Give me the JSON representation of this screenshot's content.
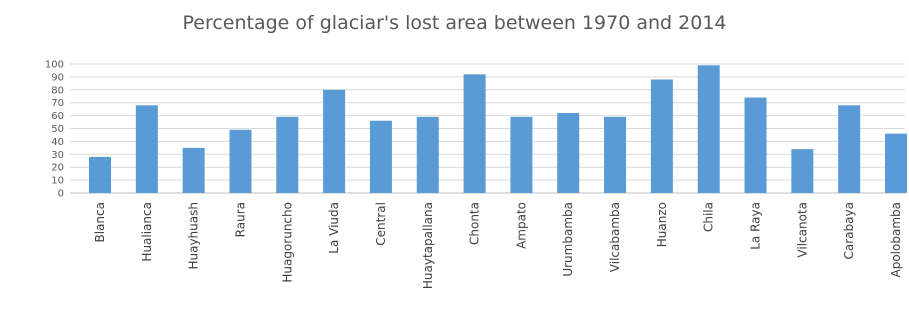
{
  "chart_data": {
    "type": "bar",
    "title": "Percentage of glaciar's lost area between 1970 and 2014",
    "xlabel": "",
    "ylabel": "",
    "ylim": [
      0,
      100
    ],
    "yticks": [
      0,
      10,
      20,
      30,
      40,
      50,
      60,
      70,
      80,
      90,
      100
    ],
    "grid": true,
    "legend": "none",
    "bar_color": "#5b9bd5",
    "categories": [
      "Blanca",
      "Hualianca",
      "Huayhuash",
      "Raura",
      "Huagoruncho",
      "La Viuda",
      "Central",
      "Huaytapallana",
      "Chonta",
      "Ampato",
      "Urumbamba",
      "Vilcabamba",
      "Huanzo",
      "Chila",
      "La Raya",
      "Vilcanota",
      "Carabaya",
      "Apolobamba"
    ],
    "values": [
      28,
      68,
      35,
      49,
      59,
      80,
      56,
      59,
      92,
      59,
      62,
      59,
      88,
      99,
      74,
      34,
      68,
      46
    ]
  }
}
